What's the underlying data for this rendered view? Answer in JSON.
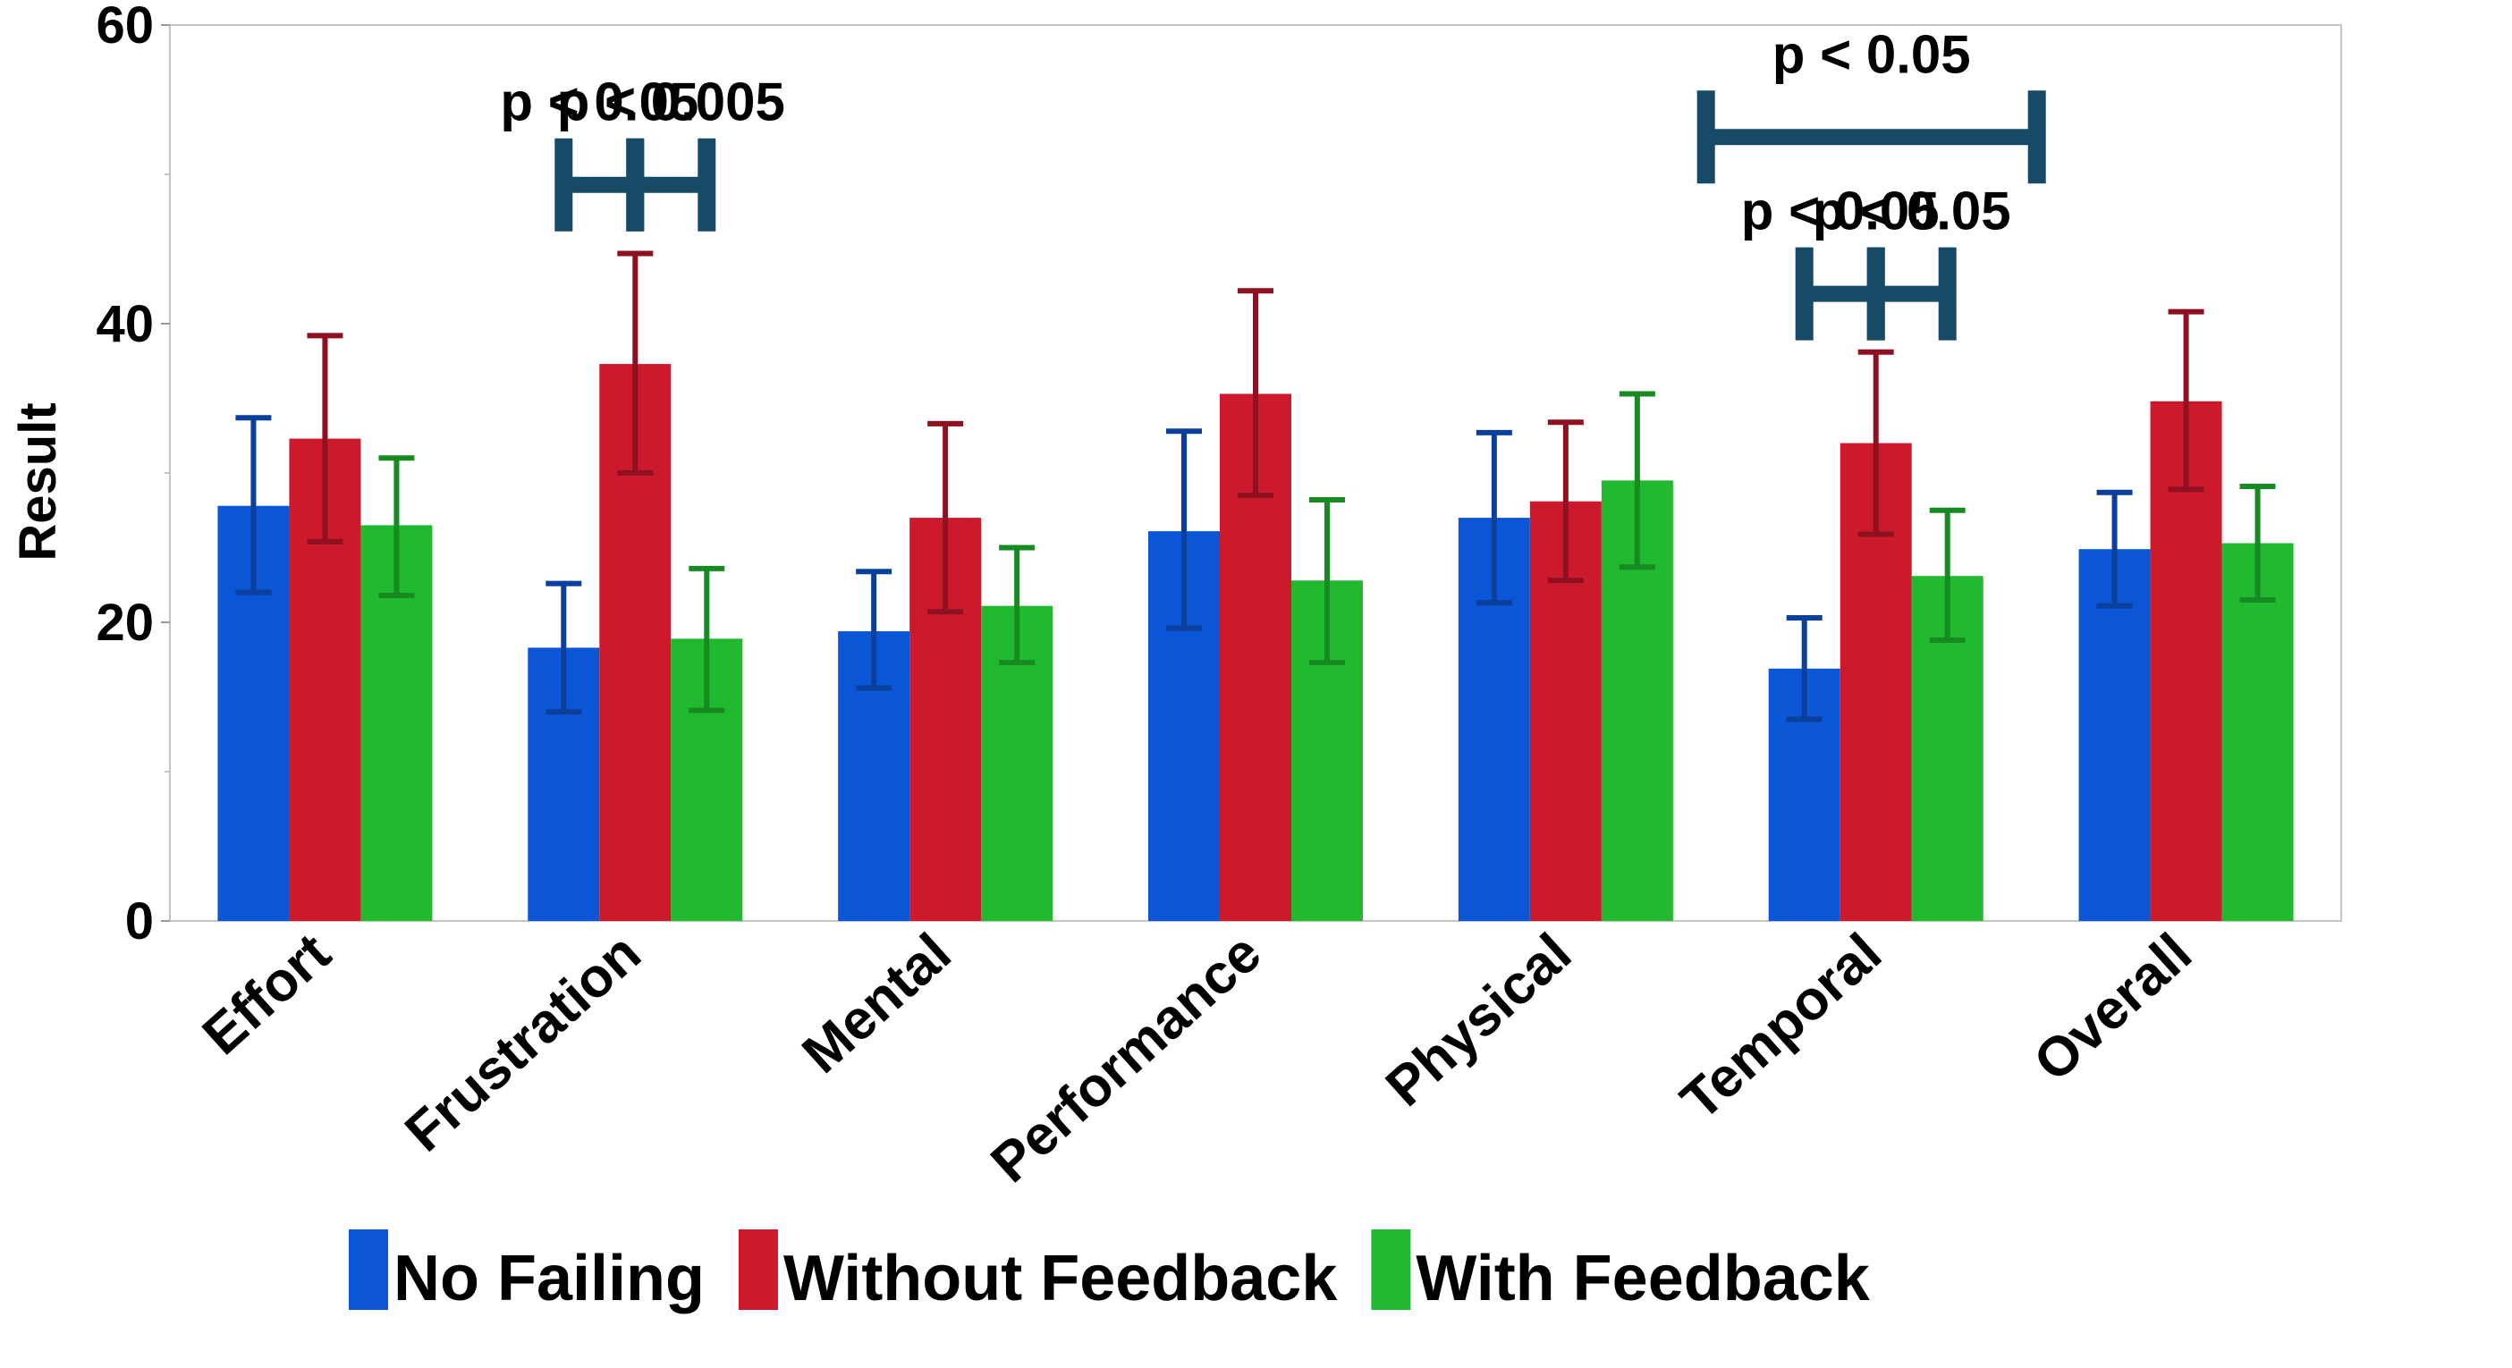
{
  "chart_data": {
    "type": "bar",
    "ylabel": "Result",
    "xlabel": "",
    "ylim": [
      0,
      60
    ],
    "yticks": [
      0,
      20,
      40,
      60
    ],
    "grid": false,
    "legend_position": "bottom",
    "categories": [
      "Effort",
      "Frustration",
      "Mental",
      "Performance",
      "Physical",
      "Temporal",
      "Overall"
    ],
    "series": [
      {
        "name": "No Failing",
        "color": "#0b56d6",
        "error_color": "#0a3f9c",
        "values": [
          27.8,
          18.3,
          19.4,
          26.1,
          27.0,
          16.9,
          24.9
        ],
        "lower": [
          22.0,
          14.0,
          15.6,
          19.6,
          21.3,
          13.5,
          21.1
        ],
        "upper": [
          33.7,
          22.6,
          23.4,
          32.8,
          32.7,
          20.3,
          28.7
        ]
      },
      {
        "name": "Without Feedback",
        "color": "#cc1a2c",
        "error_color": "#8f1020",
        "values": [
          32.3,
          37.3,
          27.0,
          35.3,
          28.1,
          32.0,
          34.8
        ],
        "lower": [
          25.4,
          30.0,
          20.7,
          28.5,
          22.8,
          25.9,
          28.9
        ],
        "upper": [
          39.2,
          44.7,
          33.3,
          42.2,
          33.4,
          38.1,
          40.8
        ]
      },
      {
        "name": "With Feedback",
        "color": "#21b92f",
        "error_color": "#178a22",
        "values": [
          26.5,
          18.9,
          21.1,
          22.8,
          29.5,
          23.1,
          25.3
        ],
        "lower": [
          21.8,
          14.1,
          17.3,
          17.3,
          23.7,
          18.8,
          21.5
        ],
        "upper": [
          31.0,
          23.6,
          25.0,
          28.2,
          35.3,
          27.5,
          29.1
        ]
      }
    ],
    "significance": [
      {
        "category": "Frustration",
        "from_series": 0,
        "to_series": 1,
        "y": 49.3,
        "label": "p < 0.05"
      },
      {
        "category": "Frustration",
        "from_series": 1,
        "to_series": 2,
        "y": 49.3,
        "label": "p < 0.005"
      },
      {
        "category": "Temporal",
        "from_series": 0,
        "to_series": 1,
        "y": 42.0,
        "label": "p < 0.05"
      },
      {
        "category": "Temporal",
        "from_series": 1,
        "to_series": 2,
        "y": 42.0,
        "label": "p < 0.05"
      },
      {
        "category": "Temporal",
        "from_series": 0,
        "to_series": 2,
        "y": 52.5,
        "label": "p < 0.05",
        "span": "wide"
      }
    ],
    "significance_color": "#164a66"
  }
}
